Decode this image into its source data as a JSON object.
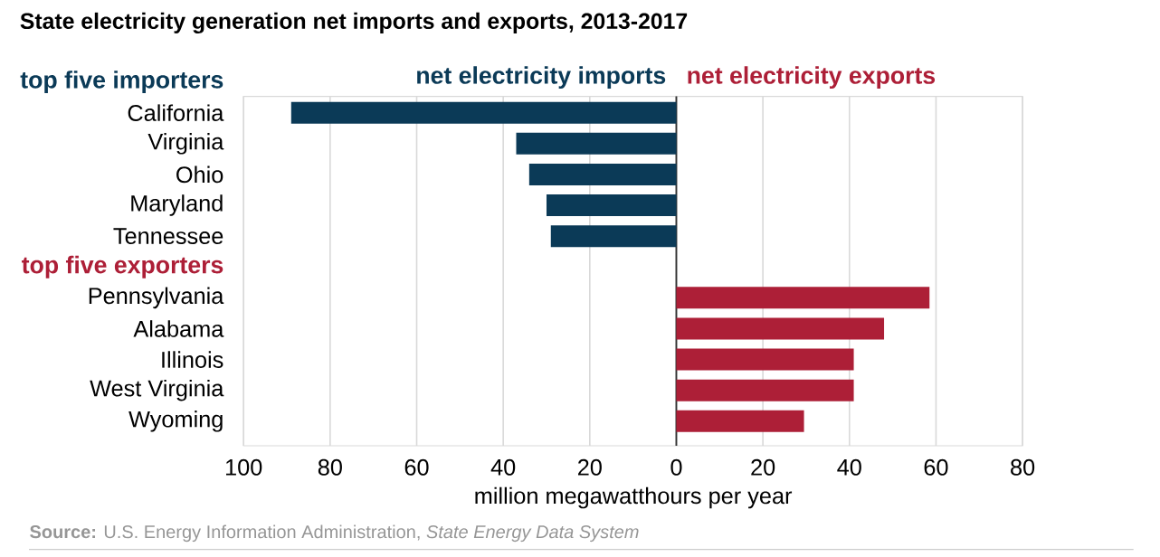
{
  "chart_data": {
    "type": "bar",
    "orientation": "horizontal",
    "title": "State electricity generation net imports and exports, 2013-2017",
    "xlabel": "million megawatthours per year",
    "categories": [
      "top five importers",
      "California",
      "Virginia",
      "Ohio",
      "Maryland",
      "Tennessee",
      "top five exporters",
      "Pennsylvania",
      "Alabama",
      "Illinois",
      "West Virginia",
      "Wyoming"
    ],
    "series": [
      {
        "name": "net electricity imports",
        "color": "#0b3a57",
        "values": [
          null,
          -89,
          -37,
          -34,
          -30,
          -29,
          null,
          null,
          null,
          null,
          null,
          null
        ]
      },
      {
        "name": "net electricity exports",
        "color": "#ad1f37",
        "values": [
          null,
          null,
          null,
          null,
          null,
          null,
          null,
          58.5,
          48,
          41,
          41,
          29.5
        ]
      }
    ],
    "xlim": [
      -100,
      80
    ],
    "xticks": [
      {
        "value": -100,
        "label": "100"
      },
      {
        "value": -80,
        "label": "80"
      },
      {
        "value": -60,
        "label": "60"
      },
      {
        "value": -40,
        "label": "40"
      },
      {
        "value": -20,
        "label": "20"
      },
      0,
      20,
      40,
      60,
      80
    ],
    "grid": "x",
    "legend": "top",
    "annotations": [
      "**Source:** U.S. Energy Information Administration, *State Energy Data System*"
    ]
  }
}
